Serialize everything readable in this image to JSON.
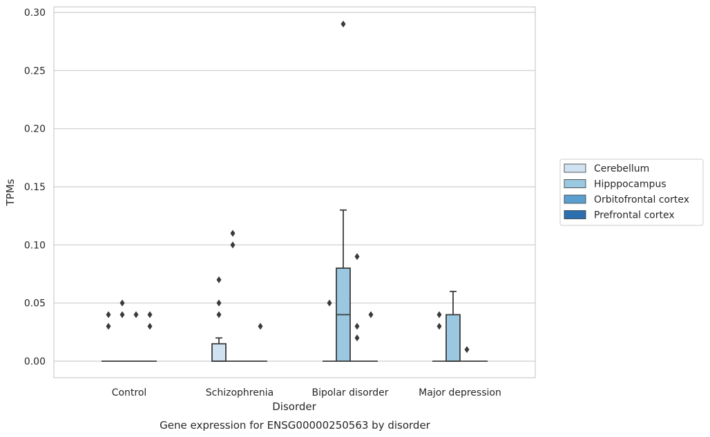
{
  "chart_data": {
    "type": "box",
    "title": "",
    "caption": "Gene expression for ENSG00000250563 by disorder",
    "xlabel": "Disorder",
    "ylabel": "TPMs",
    "ylim": [
      -0.014,
      0.3
    ],
    "yticks": [
      "0.00",
      "0.05",
      "0.10",
      "0.15",
      "0.20",
      "0.25",
      "0.30"
    ],
    "ytick_values": [
      0.0,
      0.05,
      0.1,
      0.15,
      0.2,
      0.25,
      0.3
    ],
    "grid": "horizontal",
    "legend_placement": "right",
    "categories": [
      "Control",
      "Schizophrenia",
      "Bipolar disorder",
      "Major depression"
    ],
    "series": [
      {
        "name": "Cerebellum",
        "color": "#d0e2f2",
        "boxes": [
          {
            "q1": 0,
            "median": 0,
            "q3": 0,
            "whisker_low": 0,
            "whisker_high": 0,
            "outliers": [
              0.03,
              0.04
            ]
          },
          {
            "q1": 0,
            "median": 0,
            "q3": 0.015,
            "whisker_low": 0,
            "whisker_high": 0.02,
            "outliers": [
              0.04,
              0.05,
              0.07
            ]
          },
          {
            "q1": 0,
            "median": 0,
            "q3": 0,
            "whisker_low": 0,
            "whisker_high": 0,
            "outliers": [
              0.05
            ]
          },
          {
            "q1": 0,
            "median": 0,
            "q3": 0,
            "whisker_low": 0,
            "whisker_high": 0,
            "outliers": [
              0.03,
              0.04
            ]
          }
        ]
      },
      {
        "name": "Hipppocampus",
        "color": "#9ac8e0",
        "boxes": [
          {
            "q1": 0,
            "median": 0,
            "q3": 0,
            "whisker_low": 0,
            "whisker_high": 0,
            "outliers": [
              0.04,
              0.05
            ]
          },
          {
            "q1": 0,
            "median": 0,
            "q3": 0,
            "whisker_low": 0,
            "whisker_high": 0,
            "outliers": [
              0.1,
              0.11
            ]
          },
          {
            "q1": 0,
            "median": 0.04,
            "q3": 0.08,
            "whisker_low": 0,
            "whisker_high": 0.13,
            "outliers": [
              0.29
            ]
          },
          {
            "q1": 0,
            "median": 0,
            "q3": 0.04,
            "whisker_low": 0,
            "whisker_high": 0.06,
            "outliers": []
          }
        ]
      },
      {
        "name": "Orbitofrontal cortex",
        "color": "#5a9fcf",
        "boxes": [
          {
            "q1": 0,
            "median": 0,
            "q3": 0,
            "whisker_low": 0,
            "whisker_high": 0,
            "outliers": [
              0.04
            ]
          },
          {
            "q1": 0,
            "median": 0,
            "q3": 0,
            "whisker_low": 0,
            "whisker_high": 0,
            "outliers": []
          },
          {
            "q1": 0,
            "median": 0,
            "q3": 0,
            "whisker_low": 0,
            "whisker_high": 0,
            "outliers": [
              0.02,
              0.03,
              0.09
            ]
          },
          {
            "q1": 0,
            "median": 0,
            "q3": 0,
            "whisker_low": 0,
            "whisker_high": 0,
            "outliers": [
              0.01
            ]
          }
        ]
      },
      {
        "name": "Prefrontal cortex",
        "color": "#2c6fae",
        "boxes": [
          {
            "q1": 0,
            "median": 0,
            "q3": 0,
            "whisker_low": 0,
            "whisker_high": 0,
            "outliers": [
              0.03,
              0.04
            ]
          },
          {
            "q1": 0,
            "median": 0,
            "q3": 0,
            "whisker_low": 0,
            "whisker_high": 0,
            "outliers": [
              0.03
            ]
          },
          {
            "q1": 0,
            "median": 0,
            "q3": 0,
            "whisker_low": 0,
            "whisker_high": 0,
            "outliers": [
              0.04
            ]
          },
          {
            "q1": 0,
            "median": 0,
            "q3": 0,
            "whisker_low": 0,
            "whisker_high": 0,
            "outliers": []
          }
        ]
      }
    ]
  }
}
